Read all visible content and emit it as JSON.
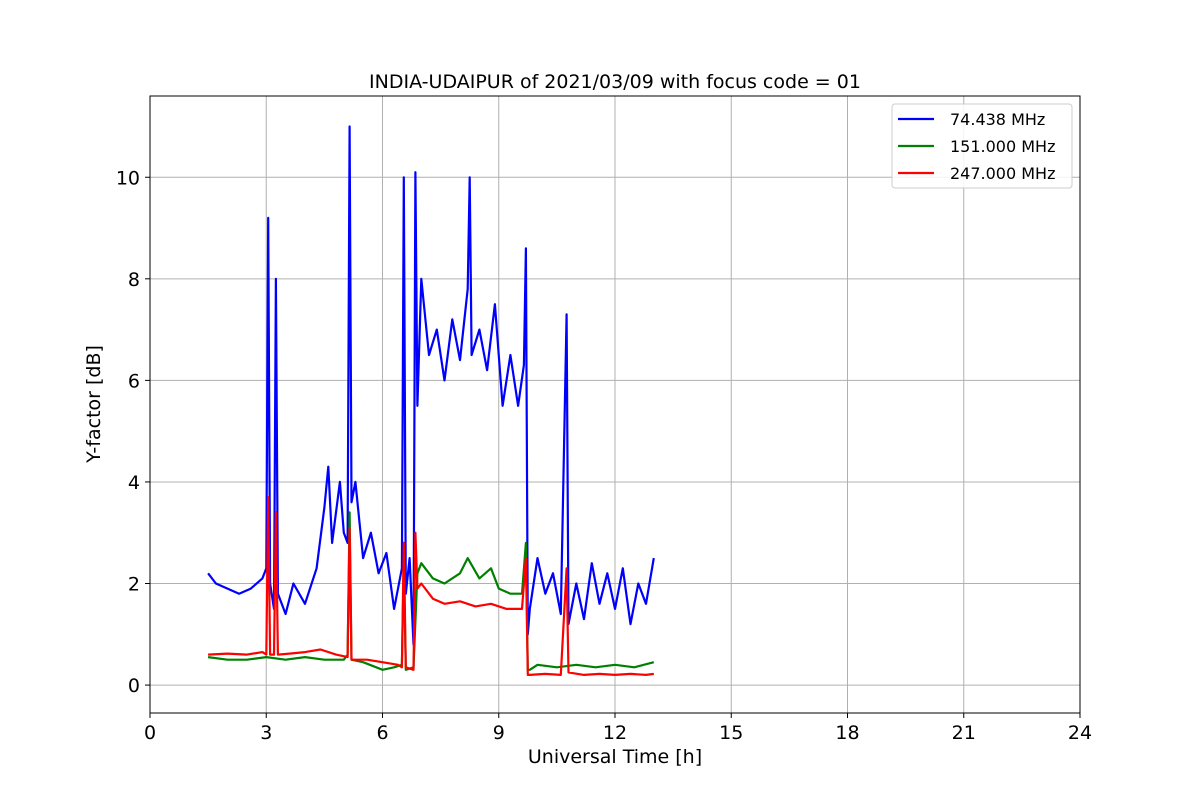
{
  "chart_data": {
    "type": "line",
    "title": "INDIA-UDAIPUR of 2021/03/09 with focus code = 01",
    "xlabel": "Universal Time [h]",
    "ylabel": "Y-factor [dB]",
    "xlim": [
      0,
      24
    ],
    "ylim": [
      -0.55,
      11.6
    ],
    "xticks": [
      0,
      3,
      6,
      9,
      12,
      15,
      18,
      21,
      24
    ],
    "yticks": [
      0,
      2,
      4,
      6,
      8,
      10
    ],
    "grid": true,
    "legend_position": "top-right",
    "series": [
      {
        "name": " 74.438 MHz",
        "color": "#0000ff",
        "x": [
          1.5,
          1.7,
          2.0,
          2.3,
          2.6,
          2.9,
          3.0,
          3.05,
          3.1,
          3.2,
          3.25,
          3.3,
          3.5,
          3.7,
          4.0,
          4.3,
          4.5,
          4.6,
          4.7,
          4.9,
          5.0,
          5.1,
          5.15,
          5.2,
          5.3,
          5.5,
          5.7,
          5.9,
          6.1,
          6.3,
          6.5,
          6.55,
          6.6,
          6.7,
          6.8,
          6.85,
          6.9,
          7.0,
          7.2,
          7.4,
          7.6,
          7.8,
          8.0,
          8.2,
          8.25,
          8.3,
          8.5,
          8.7,
          8.9,
          9.1,
          9.3,
          9.5,
          9.65,
          9.7,
          9.75,
          9.8,
          10.0,
          10.2,
          10.4,
          10.6,
          10.75,
          10.8,
          11.0,
          11.2,
          11.4,
          11.6,
          11.8,
          12.0,
          12.2,
          12.4,
          12.6,
          12.8,
          13.0
        ],
        "y": [
          2.2,
          2.0,
          1.9,
          1.8,
          1.9,
          2.1,
          2.3,
          9.2,
          2.0,
          1.5,
          8.0,
          1.8,
          1.4,
          2.0,
          1.6,
          2.3,
          3.5,
          4.3,
          2.8,
          4.0,
          3.0,
          2.8,
          11.0,
          3.6,
          4.0,
          2.5,
          3.0,
          2.2,
          2.6,
          1.5,
          2.3,
          10.0,
          1.8,
          2.5,
          0.8,
          10.1,
          5.5,
          8.0,
          6.5,
          7.0,
          6.0,
          7.2,
          6.4,
          7.8,
          10.0,
          6.5,
          7.0,
          6.2,
          7.5,
          5.5,
          6.5,
          5.5,
          6.3,
          8.6,
          1.0,
          1.5,
          2.5,
          1.8,
          2.2,
          1.4,
          7.3,
          1.2,
          2.0,
          1.3,
          2.4,
          1.6,
          2.2,
          1.5,
          2.3,
          1.2,
          2.0,
          1.6,
          2.5
        ]
      },
      {
        "name": "151.000 MHz",
        "color": "#008000",
        "x": [
          1.5,
          2.0,
          2.5,
          3.0,
          3.5,
          4.0,
          4.5,
          5.0,
          5.1,
          5.15,
          5.2,
          5.5,
          6.0,
          6.3,
          6.5,
          6.55,
          6.6,
          6.8,
          6.9,
          7.0,
          7.3,
          7.6,
          8.0,
          8.2,
          8.5,
          8.8,
          9.0,
          9.3,
          9.6,
          9.7,
          9.75,
          9.8,
          10.0,
          10.5,
          11.0,
          11.5,
          12.0,
          12.5,
          13.0
        ],
        "y": [
          0.55,
          0.5,
          0.5,
          0.55,
          0.5,
          0.55,
          0.5,
          0.5,
          0.6,
          3.4,
          0.5,
          0.45,
          0.3,
          0.35,
          0.4,
          2.5,
          0.3,
          0.35,
          2.2,
          2.4,
          2.1,
          2.0,
          2.2,
          2.5,
          2.1,
          2.3,
          1.9,
          1.8,
          1.8,
          2.8,
          0.3,
          0.3,
          0.4,
          0.35,
          0.4,
          0.35,
          0.4,
          0.35,
          0.45
        ]
      },
      {
        "name": "247.000 MHz",
        "color": "#ff0000",
        "x": [
          1.5,
          2.0,
          2.5,
          2.9,
          3.0,
          3.05,
          3.1,
          3.2,
          3.25,
          3.3,
          3.6,
          4.0,
          4.4,
          4.8,
          5.1,
          5.15,
          5.2,
          5.6,
          6.0,
          6.4,
          6.5,
          6.55,
          6.6,
          6.8,
          6.85,
          6.9,
          7.0,
          7.3,
          7.6,
          8.0,
          8.4,
          8.8,
          9.2,
          9.6,
          9.7,
          9.75,
          9.8,
          10.2,
          10.6,
          10.75,
          10.8,
          11.2,
          11.6,
          12.0,
          12.4,
          12.8,
          13.0
        ],
        "y": [
          0.6,
          0.62,
          0.6,
          0.65,
          0.6,
          3.7,
          0.6,
          0.6,
          3.4,
          0.6,
          0.62,
          0.65,
          0.7,
          0.6,
          0.55,
          3.1,
          0.5,
          0.5,
          0.45,
          0.4,
          0.35,
          2.8,
          0.35,
          0.3,
          3.0,
          1.9,
          2.0,
          1.7,
          1.6,
          1.65,
          1.55,
          1.6,
          1.5,
          1.5,
          2.5,
          0.2,
          0.2,
          0.22,
          0.2,
          2.3,
          0.25,
          0.2,
          0.22,
          0.2,
          0.22,
          0.2,
          0.22
        ]
      }
    ]
  }
}
